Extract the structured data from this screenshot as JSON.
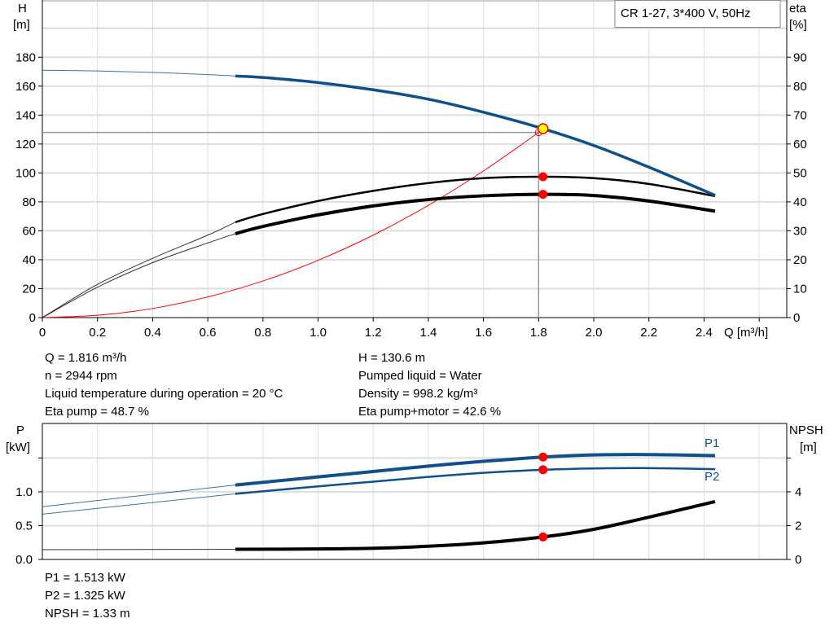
{
  "title_box": "CR 1-27, 3*400 V, 50Hz",
  "colors": {
    "head": "#0f4f8a",
    "power": "#0f4f8a",
    "eta": "#000000",
    "npsh": "#000000",
    "system": "#ff0000",
    "duty_point_fill": "#ffff00",
    "marker": "#ff0000",
    "grid": "#dddddd"
  },
  "chart_data": [
    {
      "type": "line",
      "xlabel": "Q [m³/h]",
      "ylabel_left": [
        "H",
        "[m]"
      ],
      "ylabel_right": [
        "eta",
        "[%]"
      ],
      "xlim": [
        0,
        2.7
      ],
      "ylim_left": [
        0,
        219
      ],
      "ylim_right": [
        0,
        109.5
      ],
      "x_ticks": [
        "0",
        "0.2",
        "0.4",
        "0.6",
        "0.8",
        "1.0",
        "1.2",
        "1.4",
        "1.6",
        "1.8",
        "2.0",
        "2.2",
        "2.4"
      ],
      "y_ticks_left": [
        "0",
        "20",
        "40",
        "60",
        "80",
        "100",
        "120",
        "140",
        "160",
        "180"
      ],
      "y_ticks_right": [
        "0",
        "10",
        "20",
        "30",
        "40",
        "50",
        "60",
        "70",
        "80",
        "90"
      ],
      "grid": true,
      "series": [
        {
          "axis": "left",
          "role": "head",
          "x": [
            0,
            0.2,
            0.4,
            0.6,
            0.7,
            0.8,
            1.0,
            1.2,
            1.4,
            1.6,
            1.816,
            2.0,
            2.2,
            2.44
          ],
          "y": [
            171,
            170.5,
            169.5,
            168,
            167,
            166,
            162.5,
            157.5,
            151,
            142,
            130.6,
            119,
            104,
            84.5
          ]
        },
        {
          "axis": "right",
          "role": "eta-pump",
          "x": [
            0,
            0.2,
            0.4,
            0.6,
            0.7,
            0.8,
            1.0,
            1.2,
            1.4,
            1.6,
            1.816,
            2.0,
            2.2,
            2.44
          ],
          "y": [
            0,
            11.5,
            20.5,
            28.5,
            33,
            35.8,
            40.3,
            43.8,
            46.5,
            48.2,
            48.7,
            48.2,
            46.2,
            42
          ]
        },
        {
          "axis": "right",
          "role": "eta-pump-motor",
          "x": [
            0,
            0.2,
            0.4,
            0.6,
            0.7,
            0.8,
            1.0,
            1.2,
            1.4,
            1.6,
            1.816,
            2.0,
            2.2,
            2.44
          ],
          "y": [
            0,
            10.5,
            19,
            25.8,
            29,
            31.5,
            35.5,
            38.6,
            40.8,
            42.1,
            42.6,
            42.2,
            40.3,
            36.8
          ]
        },
        {
          "axis": "left",
          "role": "system",
          "x": [
            0,
            0.2,
            0.4,
            0.6,
            0.8,
            1.0,
            1.2,
            1.4,
            1.6,
            1.8
          ],
          "y": [
            0,
            1.6,
            6.3,
            14.3,
            25.3,
            39.6,
            57,
            77.6,
            101.4,
            128
          ]
        }
      ],
      "duty_point": {
        "q": 1.816,
        "h": 130.6,
        "eta_pump": 48.7,
        "eta_pump_motor": 42.6
      },
      "system_end": {
        "q": 1.8,
        "h": 128
      }
    },
    {
      "type": "line",
      "ylabel_left": [
        "P",
        "[kW]"
      ],
      "ylabel_right": [
        "NPSH",
        "[m]"
      ],
      "xlim": [
        0,
        2.7
      ],
      "ylim_left": [
        0,
        2.01
      ],
      "ylim_right": [
        0,
        8.04
      ],
      "y_ticks_left": [
        "0.0",
        "0.5",
        "1.0",
        ""
      ],
      "y_ticks_right": [
        "0",
        "2",
        "4",
        ""
      ],
      "grid": true,
      "series": [
        {
          "axis": "left",
          "name": "P1",
          "x": [
            0,
            0.7,
            1.0,
            1.2,
            1.4,
            1.6,
            1.816,
            2.0,
            2.2,
            2.44
          ],
          "y": [
            0.78,
            1.1,
            1.22,
            1.3,
            1.38,
            1.45,
            1.513,
            1.545,
            1.55,
            1.535
          ]
        },
        {
          "axis": "left",
          "name": "P2",
          "x": [
            0,
            0.7,
            1.0,
            1.2,
            1.4,
            1.6,
            1.816,
            2.0,
            2.2,
            2.44
          ],
          "y": [
            0.67,
            0.97,
            1.08,
            1.15,
            1.22,
            1.28,
            1.325,
            1.345,
            1.35,
            1.335
          ]
        },
        {
          "axis": "right",
          "role": "npsh",
          "x": [
            0,
            0.7,
            1.0,
            1.2,
            1.4,
            1.6,
            1.816,
            2.0,
            2.2,
            2.44
          ],
          "y": [
            0.58,
            0.6,
            0.62,
            0.66,
            0.78,
            0.98,
            1.33,
            1.78,
            2.5,
            3.42
          ]
        }
      ],
      "duty_point": {
        "q": 1.816,
        "p1": 1.513,
        "p2": 1.325,
        "npsh": 1.33
      }
    }
  ],
  "info_top_left": [
    "Q = 1.816 m³/h",
    "n = 2944 rpm",
    "Liquid temperature during operation = 20 °C",
    "Eta pump = 48.7 %"
  ],
  "info_top_right": [
    "H = 130.6 m",
    "Pumped liquid = Water",
    "Density = 998.2 kg/m³",
    "Eta pump+motor = 42.6 %"
  ],
  "info_bottom": [
    "P1 = 1.513 kW",
    "P2 = 1.325 kW",
    "NPSH = 1.33 m"
  ]
}
